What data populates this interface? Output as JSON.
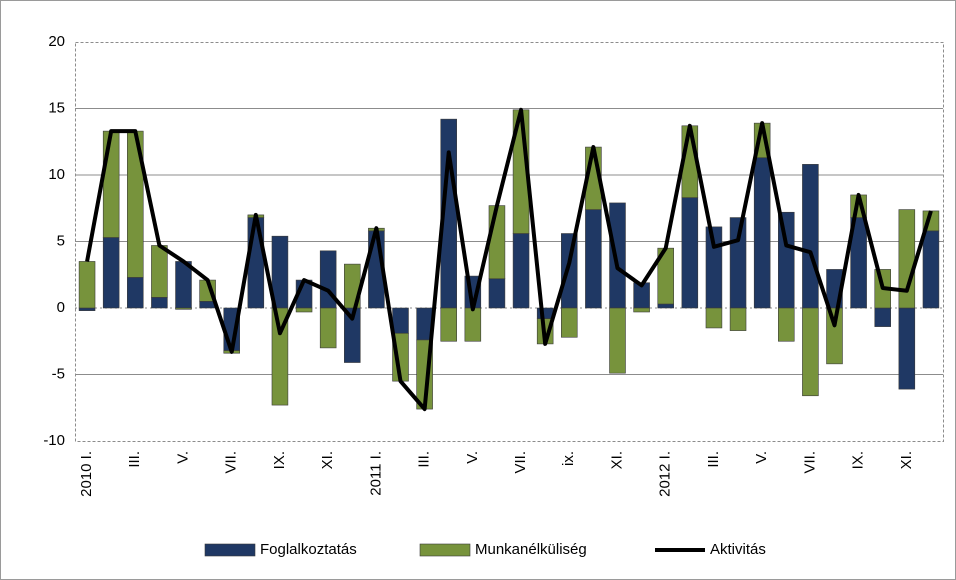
{
  "chart_data": {
    "type": "bar",
    "categories": [
      "2010 I.",
      null,
      "III.",
      null,
      "V.",
      null,
      "VII.",
      null,
      "IX.",
      null,
      "XI.",
      null,
      "2011 I.",
      null,
      "III.",
      null,
      "V.",
      null,
      "VII.",
      null,
      "ix.",
      null,
      "XI.",
      null,
      "2012 I.",
      null,
      "III.",
      null,
      "V.",
      null,
      "VII.",
      null,
      "IX.",
      null,
      "XI.",
      null
    ],
    "series": [
      {
        "name": "Foglalkoztatás",
        "type": "bar",
        "color": "#1f3864",
        "values": [
          -0.2,
          5.3,
          2.3,
          0.8,
          3.5,
          0.5,
          -3.2,
          6.8,
          5.4,
          2.1,
          4.3,
          -4.1,
          5.8,
          -1.9,
          -2.4,
          14.2,
          2.4,
          2.2,
          5.6,
          -0.8,
          5.6,
          7.4,
          7.9,
          1.9,
          0.3,
          8.3,
          6.1,
          6.8,
          11.3,
          7.2,
          10.8,
          2.9,
          6.8,
          -1.4,
          -6.1,
          5.8
        ]
      },
      {
        "name": "Munkanélküliség",
        "type": "bar",
        "color": "#77933c",
        "values": [
          3.5,
          8.0,
          11.0,
          3.9,
          -0.1,
          1.6,
          -0.2,
          0.2,
          -7.3,
          -0.3,
          -3.0,
          3.3,
          0.2,
          -3.6,
          -5.2,
          -2.5,
          -2.5,
          5.5,
          9.3,
          -1.9,
          -2.2,
          4.7,
          -4.9,
          -0.3,
          4.2,
          5.4,
          -1.5,
          -1.7,
          2.6,
          -2.5,
          -6.6,
          -4.2,
          1.7,
          2.9,
          7.4,
          1.5
        ]
      },
      {
        "name": "Aktivitás",
        "type": "line",
        "color": "#000000",
        "values": [
          3.5,
          13.3,
          13.3,
          4.7,
          3.5,
          2.1,
          -3.3,
          7.0,
          -1.9,
          2.1,
          1.3,
          -0.8,
          6.0,
          -5.5,
          -7.6,
          11.7,
          -0.1,
          7.7,
          14.9,
          -2.7,
          3.4,
          12.1,
          3.0,
          1.7,
          4.5,
          13.7,
          4.6,
          5.1,
          13.9,
          4.7,
          4.2,
          -1.3,
          8.5,
          1.5,
          1.3,
          7.3
        ]
      }
    ],
    "ylim": [
      -10,
      20
    ],
    "yticks": [
      -10,
      -5,
      0,
      5,
      10,
      15,
      20
    ],
    "grid": true
  }
}
